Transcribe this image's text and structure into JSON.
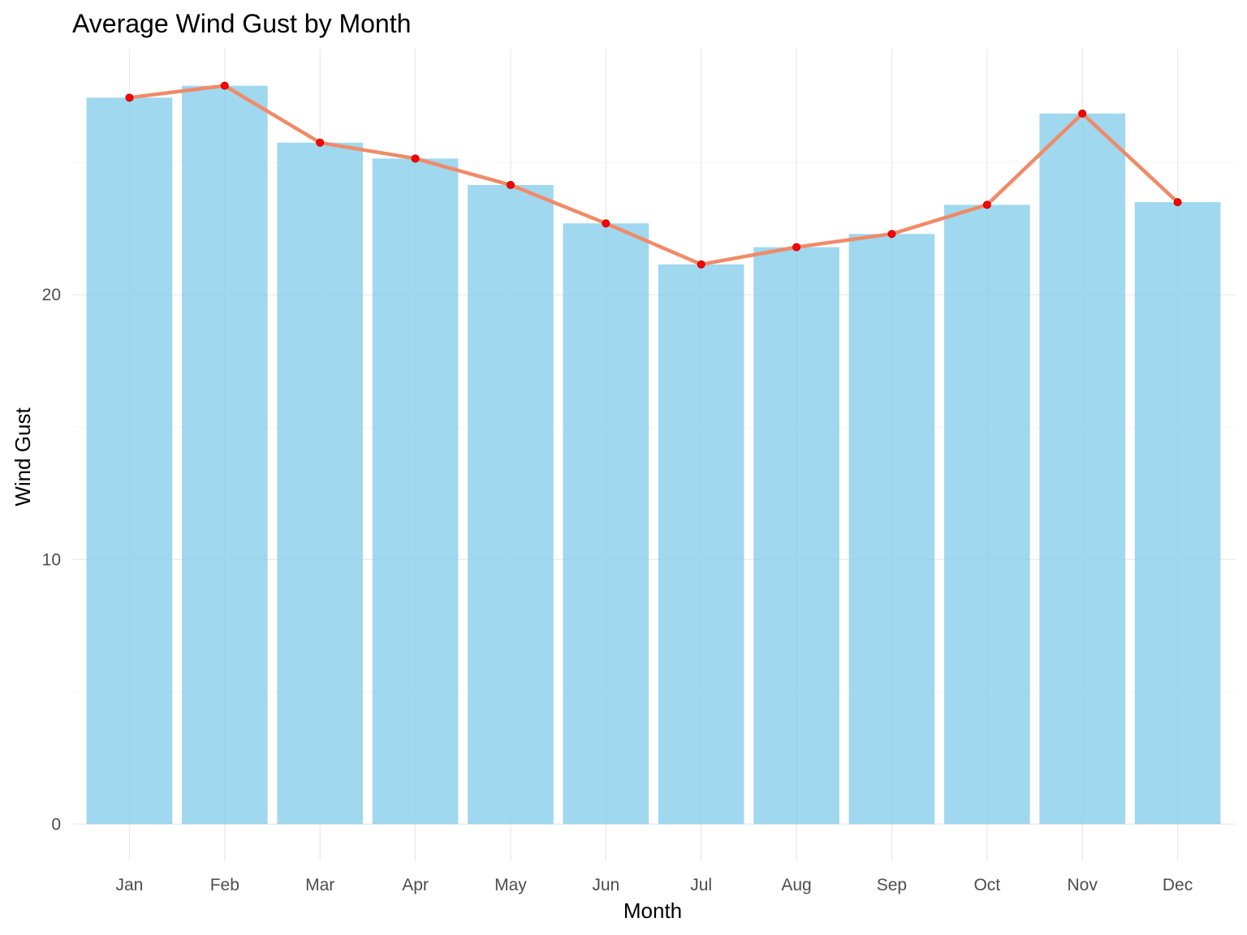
{
  "chart_data": {
    "type": "bar",
    "title": "Average Wind Gust by Month",
    "xlabel": "Month",
    "ylabel": "Wind Gust",
    "categories": [
      "Jan",
      "Feb",
      "Mar",
      "Apr",
      "May",
      "Jun",
      "Jul",
      "Aug",
      "Sep",
      "Oct",
      "Nov",
      "Dec"
    ],
    "values": [
      27.45,
      27.9,
      25.75,
      25.15,
      24.15,
      22.7,
      21.15,
      21.8,
      22.3,
      23.4,
      26.85,
      23.5
    ],
    "overlay": {
      "type": "line",
      "values": [
        27.45,
        27.9,
        25.75,
        25.15,
        24.15,
        22.7,
        21.15,
        21.8,
        22.3,
        23.4,
        26.85,
        23.5
      ]
    },
    "yticks": [
      0,
      10,
      20
    ],
    "ylim": [
      -1.4,
      29.3
    ],
    "grid": true,
    "colors": {
      "bar": "#87ceeb",
      "line": "#f08a68",
      "point": "#ff0000"
    }
  }
}
